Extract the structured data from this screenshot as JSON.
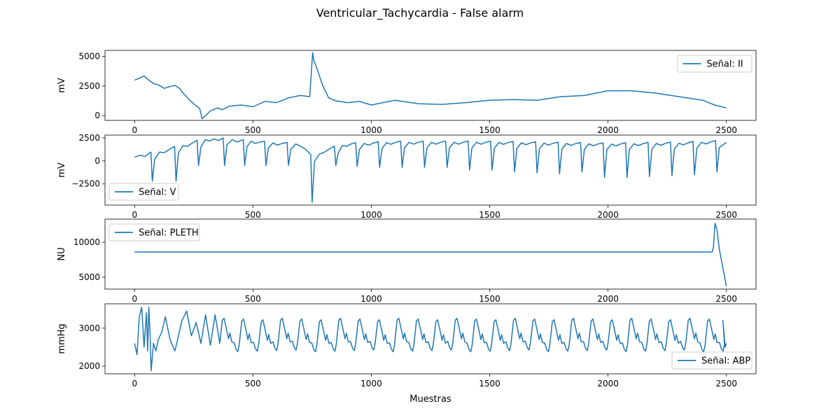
{
  "figure": {
    "title": "Ventricular_Tachycardia - False alarm",
    "xlabel": "Muestras"
  },
  "colors": {
    "line": "#1f77b4",
    "axis": "#000000",
    "background": "#ffffff",
    "legend_border": "#cccccc"
  },
  "chart_data": [
    {
      "type": "line",
      "series": [
        {
          "name": "Señal: II"
        }
      ],
      "legend": "Señal: II",
      "legend_position": "upper-right",
      "ylabel": "mV",
      "xlim": [
        -125,
        2625
      ],
      "ylim": [
        -400,
        5500
      ],
      "xticks": [
        0,
        500,
        1000,
        1500,
        2000,
        2500
      ],
      "yticks": [
        0,
        2500,
        5000
      ],
      "x": [
        0,
        20,
        40,
        60,
        80,
        100,
        125,
        150,
        170,
        190,
        200,
        215,
        230,
        250,
        275,
        285,
        300,
        320,
        350,
        370,
        400,
        450,
        500,
        550,
        600,
        650,
        700,
        740,
        752,
        758,
        770,
        790,
        800,
        820,
        850,
        900,
        950,
        1000,
        1100,
        1200,
        1300,
        1400,
        1500,
        1600,
        1700,
        1800,
        1900,
        2000,
        2100,
        2200,
        2300,
        2400,
        2450,
        2500
      ],
      "y": [
        3000,
        3150,
        3350,
        3000,
        2700,
        2600,
        2300,
        2450,
        2550,
        2300,
        2000,
        1700,
        1350,
        1000,
        600,
        -250,
        0,
        400,
        650,
        500,
        800,
        900,
        750,
        1200,
        1100,
        1500,
        1700,
        1600,
        5300,
        4600,
        4000,
        2800,
        2300,
        1500,
        1250,
        1100,
        1200,
        900,
        1300,
        1000,
        950,
        1100,
        1300,
        1350,
        1300,
        1600,
        1700,
        2100,
        2100,
        1900,
        1600,
        1300,
        900,
        650
      ]
    },
    {
      "type": "line",
      "series": [
        {
          "name": "Señal: V"
        }
      ],
      "legend": "Señal: V",
      "legend_position": "lower-left",
      "ylabel": "mV",
      "xlim": [
        -125,
        2625
      ],
      "ylim": [
        -4800,
        2800
      ],
      "xticks": [
        0,
        500,
        1000,
        1500,
        2000,
        2500
      ],
      "yticks": [
        -2500,
        0,
        2500
      ],
      "baseline": [
        [
          0,
          400
        ],
        [
          100,
          800
        ],
        [
          200,
          1500
        ],
        [
          300,
          2200
        ],
        [
          350,
          2300
        ],
        [
          450,
          2100
        ],
        [
          600,
          1800
        ],
        [
          700,
          1700
        ],
        [
          760,
          200
        ],
        [
          800,
          1000
        ],
        [
          900,
          1700
        ],
        [
          1100,
          1900
        ],
        [
          1500,
          1900
        ],
        [
          2000,
          1700
        ],
        [
          2300,
          1800
        ],
        [
          2500,
          2000
        ]
      ],
      "spikes_x": [
        75,
        175,
        270,
        380,
        465,
        555,
        650,
        750,
        850,
        940,
        1035,
        1130,
        1225,
        1320,
        1415,
        1510,
        1605,
        1700,
        1795,
        1890,
        1985,
        2080,
        2175,
        2270,
        2365,
        2460
      ],
      "spikes_y": [
        -2200,
        -2200,
        -500,
        -500,
        -500,
        -500,
        -500,
        -4500,
        -500,
        -600,
        -700,
        -700,
        -700,
        -700,
        -1000,
        -1000,
        -1200,
        -1300,
        -1400,
        -1200,
        -1800,
        -1800,
        -1700,
        -1600,
        -1500,
        -1200
      ]
    },
    {
      "type": "line",
      "series": [
        {
          "name": "Señal: PLETH"
        }
      ],
      "legend": "Señal: PLETH",
      "legend_position": "upper-left",
      "ylabel": "NU",
      "xlim": [
        -125,
        2625
      ],
      "ylim": [
        3300,
        13300
      ],
      "xticks": [
        0,
        500,
        1000,
        1500,
        2000,
        2500
      ],
      "yticks": [
        5000,
        10000
      ],
      "x": [
        0,
        500,
        1000,
        1500,
        2000,
        2440,
        2445,
        2452,
        2460,
        2470,
        2480,
        2490,
        2500
      ],
      "y": [
        8600,
        8600,
        8600,
        8600,
        8600,
        8600,
        9200,
        12700,
        11800,
        9000,
        7200,
        5500,
        3700
      ]
    },
    {
      "type": "line",
      "series": [
        {
          "name": "Señal: ABP"
        }
      ],
      "legend": "Señal: ABP",
      "legend_position": "lower-right",
      "ylabel": "mmHg",
      "xlim": [
        -125,
        2625
      ],
      "ylim": [
        1800,
        3640
      ],
      "xticks": [
        0,
        500,
        1000,
        1500,
        2000,
        2500
      ],
      "yticks": [
        2000,
        3000
      ],
      "x": [
        0,
        10,
        20,
        30,
        40,
        50,
        55,
        60,
        65,
        70,
        80,
        90,
        100,
        115,
        130,
        140,
        150,
        160,
        170,
        180,
        200,
        220,
        240,
        260,
        280,
        300,
        320,
        340,
        360
      ],
      "y": [
        2600,
        2300,
        3300,
        3550,
        2500,
        3400,
        2400,
        3550,
        2900,
        1880,
        2600,
        2400,
        2700,
        2900,
        3300,
        3000,
        2700,
        2550,
        2400,
        2650,
        3200,
        3450,
        2800,
        3150,
        2600,
        3350,
        2550,
        3350,
        2600
      ],
      "cycle_start": 360,
      "cycle_period": 82,
      "cycle_peak": 3260,
      "cycle_trough": 2380,
      "end_x": 2500,
      "end_y": 2600
    }
  ]
}
